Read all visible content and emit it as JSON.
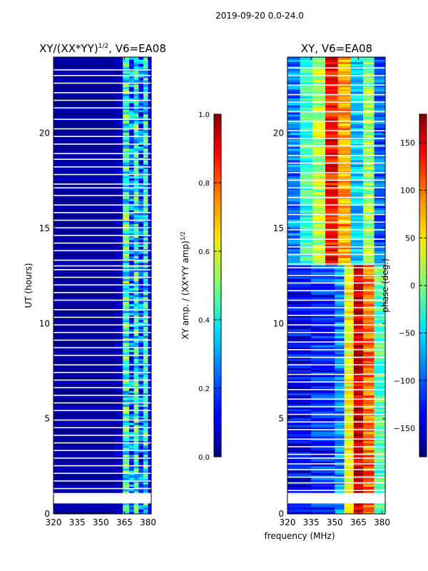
{
  "figure": {
    "suptitle": "2019-09-20 0.0-24.0",
    "shared_xlabel": "frequency (MHz)"
  },
  "chart_data": [
    {
      "type": "heatmap",
      "title": "XY/(XX*YY)",
      "title_exponent": "1/2",
      "title_suffix": ", V6=EA08",
      "xlabel": "",
      "ylabel": "UT (hours)",
      "xlim": [
        320,
        382
      ],
      "ylim": [
        0,
        24
      ],
      "xticks": [
        320,
        335,
        350,
        365,
        380
      ],
      "yticks": [
        0,
        5,
        10,
        15,
        20
      ],
      "colormap": "jet",
      "colorbar": {
        "label": "XY amp. / (XX*YY amp)",
        "label_exponent": "1/2",
        "range": [
          0.0,
          1.0
        ],
        "ticks": [
          0.0,
          0.2,
          0.4,
          0.6,
          0.8,
          1.0
        ],
        "tick_labels": [
          "0.0",
          "0.2",
          "0.4",
          "0.6",
          "0.8",
          "1.0"
        ]
      },
      "bands": [
        {
          "f0": 320,
          "f1": 359,
          "value": 0.03
        },
        {
          "f0": 359,
          "f1": 364,
          "value": 0.06
        },
        {
          "f0": 364,
          "f1": 368,
          "value": 0.42
        },
        {
          "f0": 368,
          "f1": 371,
          "value": 0.22
        },
        {
          "f0": 371,
          "f1": 374,
          "value": 0.4
        },
        {
          "f0": 374,
          "f1": 377,
          "value": 0.2
        },
        {
          "f0": 377,
          "f1": 380,
          "value": 0.38
        },
        {
          "f0": 380,
          "f1": 382,
          "value": 0.1
        }
      ],
      "white_gap_hours": [
        23.3,
        23.0,
        22.6,
        22.1,
        21.7,
        21.3,
        20.7,
        20.2,
        19.8,
        19.4,
        18.9,
        18.6,
        18.2,
        17.8,
        17.3,
        17.1,
        16.7,
        16.2,
        15.8,
        15.4,
        15.0,
        14.6,
        14.2,
        13.8,
        13.3,
        13.0,
        12.8,
        12.4,
        12.0,
        11.6,
        11.2,
        10.7,
        10.3,
        9.9,
        9.5,
        9.1,
        8.7,
        8.3,
        7.8,
        7.4,
        7.0,
        6.6,
        6.2,
        5.8,
        5.4,
        4.9,
        4.5,
        4.1,
        3.7,
        3.3,
        2.9,
        2.5,
        2.1,
        1.7,
        1.3
      ],
      "white_blocks_hours": [
        [
          0.55,
          1.1
        ]
      ]
    },
    {
      "type": "heatmap",
      "title": "XY, V6=EA08",
      "xlabel": "",
      "ylabel": "",
      "xlim": [
        320,
        382
      ],
      "ylim": [
        0,
        24
      ],
      "xticks": [
        320,
        335,
        350,
        365,
        380
      ],
      "yticks": [
        0,
        5,
        10,
        15,
        20
      ],
      "colormap": "jet",
      "colorbar": {
        "label": "phase (deg.)",
        "range": [
          -180,
          180
        ],
        "ticks": [
          -150,
          -100,
          -50,
          0,
          50,
          100,
          150
        ],
        "tick_labels": [
          "−150",
          "−100",
          "−50",
          "0",
          "50",
          "100",
          "150"
        ]
      },
      "phase_bands_low_hours": [
        {
          "f0": 320,
          "f1": 335,
          "value": -140
        },
        {
          "f0": 335,
          "f1": 350,
          "value": -120
        },
        {
          "f0": 350,
          "f1": 356,
          "value": -85
        },
        {
          "f0": 356,
          "f1": 362,
          "value": 40
        },
        {
          "f0": 362,
          "f1": 368,
          "value": 150
        },
        {
          "f0": 368,
          "f1": 375,
          "value": 100
        },
        {
          "f0": 375,
          "f1": 382,
          "value": -20
        }
      ],
      "phase_bands_high_hours": [
        {
          "f0": 320,
          "f1": 328,
          "value": -90
        },
        {
          "f0": 328,
          "f1": 336,
          "value": -30
        },
        {
          "f0": 336,
          "f1": 344,
          "value": 20
        },
        {
          "f0": 344,
          "f1": 352,
          "value": 130
        },
        {
          "f0": 352,
          "f1": 360,
          "value": 80
        },
        {
          "f0": 360,
          "f1": 368,
          "value": -60
        },
        {
          "f0": 368,
          "f1": 375,
          "value": 10
        },
        {
          "f0": 375,
          "f1": 382,
          "value": -100
        }
      ],
      "transition_hour": 13.0,
      "white_gap_hours": [
        23.4,
        23.0,
        22.5,
        22.0,
        21.6,
        21.1,
        20.6,
        20.1,
        19.7,
        19.3,
        18.8,
        18.4,
        17.9,
        17.5,
        17.1,
        16.6,
        16.2,
        15.7,
        15.3,
        14.9,
        14.4,
        14.0,
        13.6,
        13.1,
        12.9,
        12.5,
        12.1,
        11.7,
        11.2,
        10.8,
        10.4,
        9.9,
        9.5,
        9.0,
        8.6,
        8.2,
        7.8,
        7.3,
        6.9,
        6.5,
        6.0,
        5.6,
        5.2,
        4.8,
        4.4,
        3.9,
        3.5,
        3.1,
        2.9,
        2.6,
        2.3,
        1.9,
        1.6,
        1.2
      ],
      "white_blocks_hours": [
        [
          0.55,
          1.1
        ]
      ]
    }
  ]
}
